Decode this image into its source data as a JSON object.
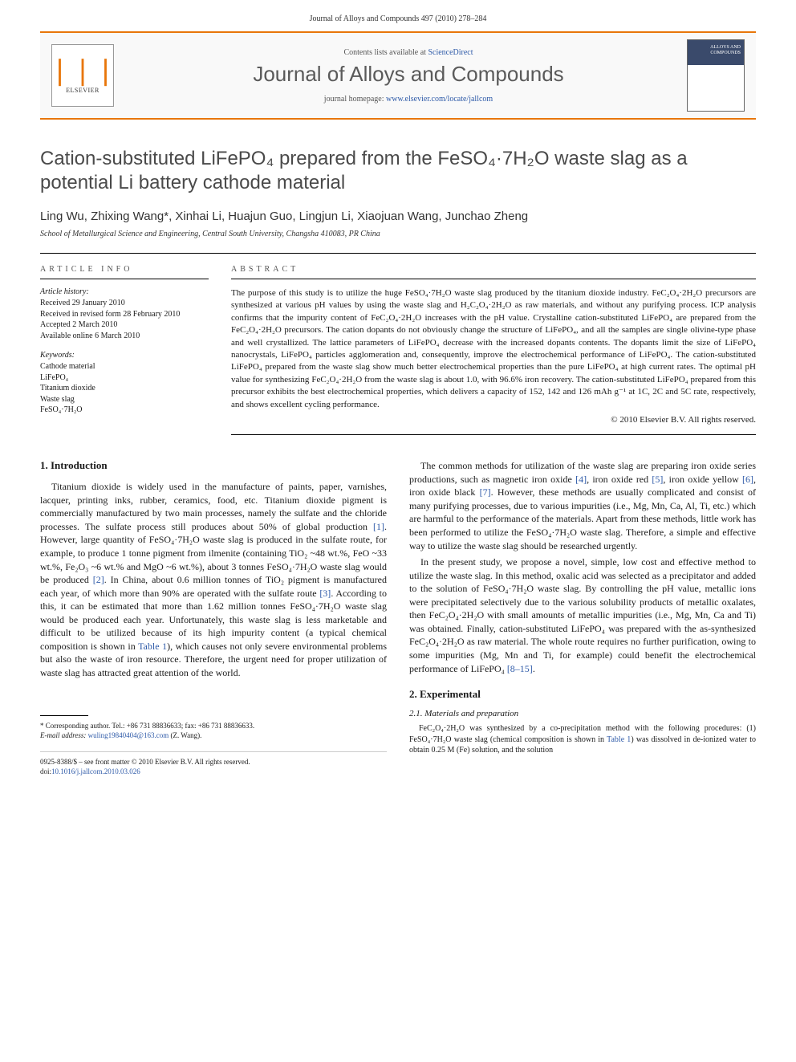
{
  "page_header": "Journal of Alloys and Compounds 497 (2010) 278–284",
  "banner": {
    "contents_pre": "Contents lists available at ",
    "contents_link": "ScienceDirect",
    "journal_name": "Journal of Alloys and Compounds",
    "homepage_pre": "journal homepage: ",
    "homepage_link": "www.elsevier.com/locate/jallcom",
    "publisher": "ELSEVIER",
    "cover_title": "ALLOYS AND COMPOUNDS"
  },
  "title": "Cation-substituted LiFePO₄ prepared from the FeSO₄·7H₂O waste slag as a potential Li battery cathode material",
  "authors": "Ling Wu, Zhixing Wang*, Xinhai Li, Huajun Guo, Lingjun Li, Xiaojuan Wang, Junchao Zheng",
  "affiliation": "School of Metallurgical Science and Engineering, Central South University, Changsha 410083, PR China",
  "info": {
    "heading": "article info",
    "history_head": "Article history:",
    "history_body": "Received 29 January 2010\nReceived in revised form 28 February 2010\nAccepted 2 March 2010\nAvailable online 6 March 2010",
    "keywords_head": "Keywords:",
    "keywords": [
      "Cathode material",
      "LiFePO₄",
      "Titanium dioxide",
      "Waste slag",
      "FeSO₄·7H₂O"
    ]
  },
  "abstract": {
    "heading": "abstract",
    "body": "The purpose of this study is to utilize the huge FeSO₄·7H₂O waste slag produced by the titanium dioxide industry. FeC₂O₄·2H₂O precursors are synthesized at various pH values by using the waste slag and H₂C₂O₄·2H₂O as raw materials, and without any purifying process. ICP analysis confirms that the impurity content of FeC₂O₄·2H₂O increases with the pH value. Crystalline cation-substituted LiFePO₄ are prepared from the FeC₂O₄·2H₂O precursors. The cation dopants do not obviously change the structure of LiFePO₄, and all the samples are single olivine-type phase and well crystallized. The lattice parameters of LiFePO₄ decrease with the increased dopants contents. The dopants limit the size of LiFePO₄ nanocrystals, LiFePO₄ particles agglomeration and, consequently, improve the electrochemical performance of LiFePO₄. The cation-substituted LiFePO₄ prepared from the waste slag show much better electrochemical properties than the pure LiFePO₄ at high current rates. The optimal pH value for synthesizing FeC₂O₄·2H₂O from the waste slag is about 1.0, with 96.6% iron recovery. The cation-substituted LiFePO₄ prepared from this precursor exhibits the best electrochemical properties, which delivers a capacity of 152, 142 and 126 mAh g⁻¹ at 1C, 2C and 5C rate, respectively, and shows excellent cycling performance.",
    "copyright": "© 2010 Elsevier B.V. All rights reserved."
  },
  "sections": {
    "intro_head": "1. Introduction",
    "intro_p1": "Titanium dioxide is widely used in the manufacture of paints, paper, varnishes, lacquer, printing inks, rubber, ceramics, food, etc. Titanium dioxide pigment is commercially manufactured by two main processes, namely the sulfate and the chloride processes. The sulfate process still produces about 50% of global production [1]. However, large quantity of FeSO₄·7H₂O waste slag is produced in the sulfate route, for example, to produce 1 tonne pigment from ilmenite (containing TiO₂ ~48 wt.%, FeO ~33 wt.%, Fe₂O₃ ~6 wt.% and MgO ~6 wt.%), about 3 tonnes FeSO₄·7H₂O waste slag would be produced [2]. In China, about 0.6 million tonnes of TiO₂ pigment is manufactured each year, of which more than 90% are operated with the sulfate route [3]. According to this, it can be estimated that more than 1.62 million tonnes FeSO₄·7H₂O waste slag would be produced each year. Unfortunately, this waste slag is less marketable and difficult to be utilized because of its high impurity content (a typical chemical composition is shown in Table 1), which causes not only severe environmental problems but also the waste of iron resource. Therefore, the urgent need for proper utilization of waste slag has attracted great attention of the world.",
    "intro_p2": "The common methods for utilization of the waste slag are preparing iron oxide series productions, such as magnetic iron oxide [4], iron oxide red [5], iron oxide yellow [6], iron oxide black [7]. However, these methods are usually complicated and consist of many purifying processes, due to various impurities (i.e., Mg, Mn, Ca, Al, Ti, etc.) which are harmful to the performance of the materials. Apart from these methods, little work has been performed to utilize the FeSO₄·7H₂O waste slag. Therefore, a simple and effective way to utilize the waste slag should be researched urgently.",
    "intro_p3": "In the present study, we propose a novel, simple, low cost and effective method to utilize the waste slag. In this method, oxalic acid was selected as a precipitator and added to the solution of FeSO₄·7H₂O waste slag. By controlling the pH value, metallic ions were precipitated selectively due to the various solubility products of metallic oxalates, then FeC₂O₄·2H₂O with small amounts of metallic impurities (i.e., Mg, Mn, Ca and Ti) was obtained. Finally, cation-substituted LiFePO₄ was prepared with the as-synthesized FeC₂O₄·2H₂O as raw material. The whole route requires no further purification, owing to some impurities (Mg, Mn and Ti, for example) could benefit the electrochemical performance of LiFePO₄ [8–15].",
    "exp_head": "2. Experimental",
    "exp_sub": "2.1. Materials and preparation",
    "exp_p1": "FeC₂O₄·2H₂O was synthesized by a co-precipitation method with the following procedures: (1) FeSO₄·7H₂O waste slag (chemical composition is shown in Table 1) was dissolved in de-ionized water to obtain 0.25 M (Fe) solution, and the solution"
  },
  "footnote": {
    "corr": "* Corresponding author. Tel.: +86 731 88836633; fax: +86 731 88836633.",
    "email_label": "E-mail address: ",
    "email": "wuling19840404@163.com",
    "email_suffix": " (Z. Wang)."
  },
  "bottom": {
    "issn": "0925-8388/$ – see front matter © 2010 Elsevier B.V. All rights reserved.",
    "doi_label": "doi:",
    "doi": "10.1016/j.jallcom.2010.03.026"
  },
  "refs": {
    "r1": "[1]",
    "r2": "[2]",
    "r3": "[3]",
    "r4": "[4]",
    "r5": "[5]",
    "r6": "[6]",
    "r7": "[7]",
    "r8_15": "[8–15]",
    "table1": "Table 1"
  }
}
